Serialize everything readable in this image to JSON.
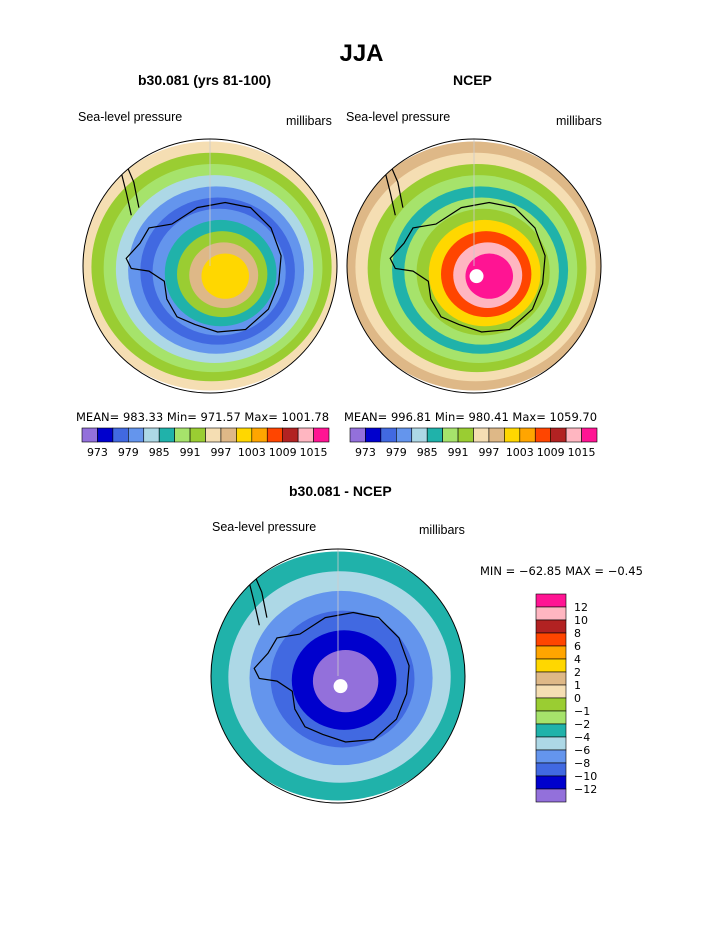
{
  "title": "JJA",
  "panels": [
    {
      "title": "b30.081 (yrs 81-100)",
      "left_label": "Sea-level pressure",
      "right_label": "millibars",
      "stats": "MEAN= 983.33   Min= 971.57   Max= 1001.78"
    },
    {
      "title": "NCEP",
      "left_label": "Sea-level pressure",
      "right_label": "millibars",
      "stats": "MEAN= 996.81   Min= 980.41   Max= 1059.70"
    },
    {
      "title": "b30.081 - NCEP",
      "left_label": "Sea-level pressure",
      "right_label": "millibars",
      "stats": "MIN = −62.85  MAX =   −0.45"
    }
  ],
  "colors": {
    "abs": [
      "#9370db",
      "#0000cd",
      "#4169e1",
      "#6495ed",
      "#add8e6",
      "#20b2aa",
      "#a6e36b",
      "#9acd32",
      "#f5deb3",
      "#deb887",
      "#ffd700",
      "#ffa500",
      "#ff4500",
      "#b22222",
      "#ffb6c1",
      "#ff1493"
    ],
    "diff": [
      "#9370db",
      "#0000cd",
      "#4169e1",
      "#6495ed",
      "#add8e6",
      "#20b2aa",
      "#a6e36b",
      "#9acd32",
      "#f5deb3",
      "#deb887",
      "#ffd700",
      "#ffa500",
      "#ff4500",
      "#b22222",
      "#ffb6c1",
      "#ff1493"
    ],
    "land": "#000000",
    "pole": "#ffffff"
  },
  "chart_data": [
    {
      "type": "heatmap",
      "title": "b30.081 (yrs 81-100)",
      "variable": "Sea-level pressure",
      "units": "millibars",
      "projection": "south polar stereographic",
      "season": "JJA",
      "mean": 983.33,
      "min": 971.57,
      "max": 1001.78,
      "colorbar_labels": [
        "973",
        "979",
        "985",
        "991",
        "997",
        "1003",
        "1009",
        "1015"
      ],
      "colorbar_levels": [
        973,
        976,
        979,
        982,
        985,
        988,
        991,
        994,
        997,
        1000,
        1003,
        1006,
        1009,
        1012,
        1015
      ],
      "rings_outer_to_inner": [
        994,
        991,
        988,
        982,
        979,
        976,
        979,
        985,
        991,
        997,
        1000
      ]
    },
    {
      "type": "heatmap",
      "title": "NCEP",
      "variable": "Sea-level pressure",
      "units": "millibars",
      "projection": "south polar stereographic",
      "season": "JJA",
      "mean": 996.81,
      "min": 980.41,
      "max": 1059.7,
      "colorbar_labels": [
        "973",
        "979",
        "985",
        "991",
        "997",
        "1003",
        "1009",
        "1015"
      ],
      "colorbar_levels": [
        973,
        976,
        979,
        982,
        985,
        988,
        991,
        994,
        997,
        1000,
        1003,
        1006,
        1009,
        1012,
        1015
      ],
      "rings_outer_to_inner": [
        997,
        994,
        991,
        988,
        985,
        988,
        991,
        1000,
        1006,
        1012,
        1015
      ]
    },
    {
      "type": "heatmap",
      "title": "b30.081 - NCEP",
      "variable": "Sea-level pressure",
      "units": "millibars",
      "projection": "south polar stereographic",
      "season": "JJA",
      "min": -62.85,
      "max": -0.45,
      "colorbar_labels": [
        "12",
        "10",
        "8",
        "6",
        "4",
        "2",
        "1",
        "0",
        "−1",
        "−2",
        "−4",
        "−6",
        "−8",
        "−10",
        "−12"
      ],
      "colorbar_levels": [
        -12,
        -10,
        -8,
        -6,
        -4,
        -2,
        -1,
        0,
        1,
        2,
        4,
        6,
        8,
        10,
        12
      ],
      "rings_outer_to_inner": [
        -3,
        -5,
        -7,
        -9,
        -11,
        -13
      ]
    }
  ]
}
